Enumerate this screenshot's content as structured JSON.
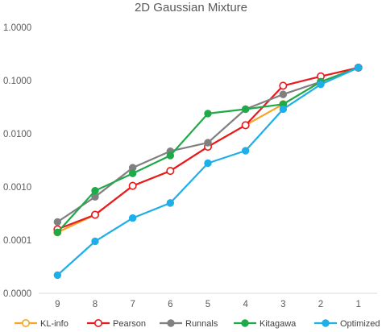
{
  "chart_data": {
    "type": "line",
    "title": "2D Gaussian Mixture",
    "xlabel": "",
    "ylabel": "",
    "y_scale": "log",
    "ylim": [
      1e-05,
      1
    ],
    "grid": false,
    "legend_position": "bottom",
    "categories": [
      "9",
      "8",
      "7",
      "6",
      "5",
      "4",
      "3",
      "2",
      "1"
    ],
    "y_ticks": [
      {
        "value": 1,
        "label": "1.0000"
      },
      {
        "value": 0.1,
        "label": "0.1000"
      },
      {
        "value": 0.01,
        "label": "0.0100"
      },
      {
        "value": 0.001,
        "label": "0.0010"
      },
      {
        "value": 0.0001,
        "label": "0.0001"
      },
      {
        "value": 1e-05,
        "label": "0.0000"
      }
    ],
    "series": [
      {
        "name": "KL-info",
        "color": "#f5a623",
        "marker": "circle-open",
        "values": [
          0.00014,
          0.0003,
          0.00105,
          0.002,
          0.0057,
          0.0145,
          0.036,
          0.095,
          0.175
        ]
      },
      {
        "name": "Pearson",
        "color": "#e8191f",
        "marker": "circle-open",
        "values": [
          0.00016,
          0.0003,
          0.00105,
          0.002,
          0.0057,
          0.0145,
          0.08,
          0.12,
          0.175
        ]
      },
      {
        "name": "Runnals",
        "color": "#808080",
        "marker": "circle",
        "values": [
          0.00022,
          0.00065,
          0.0023,
          0.0047,
          0.0068,
          0.029,
          0.055,
          0.095,
          0.175
        ]
      },
      {
        "name": "Kitagawa",
        "color": "#1faa4a",
        "marker": "circle",
        "values": [
          0.00014,
          0.00085,
          0.0018,
          0.0039,
          0.024,
          0.029,
          0.036,
          0.095,
          0.175
        ]
      },
      {
        "name": "Optimized",
        "color": "#1eaee8",
        "marker": "circle",
        "values": [
          2.2e-05,
          9.5e-05,
          0.00026,
          0.0005,
          0.0028,
          0.0048,
          0.029,
          0.085,
          0.175
        ]
      }
    ]
  }
}
